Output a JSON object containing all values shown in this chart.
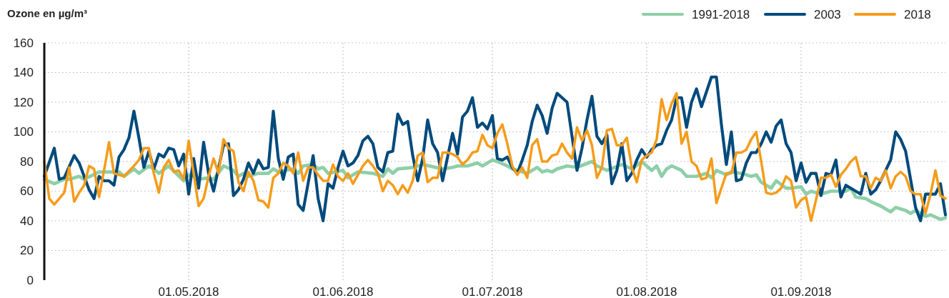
{
  "chart_data": {
    "type": "line",
    "ylabel": "Ozone en µg/m³",
    "xlim": [
      "2018-04-02",
      "2018-09-30"
    ],
    "ylim": [
      0,
      160
    ],
    "yticks": [
      0,
      20,
      40,
      60,
      80,
      100,
      120,
      140,
      160
    ],
    "xticks": [
      {
        "value": "2018-05-01",
        "label": "01.05.2018"
      },
      {
        "value": "2018-06-01",
        "label": "01.06.2018"
      },
      {
        "value": "2018-07-01",
        "label": "01.07.2018"
      },
      {
        "value": "2018-08-01",
        "label": "01.08.2018"
      },
      {
        "value": "2018-09-01",
        "label": "01.09.2018"
      }
    ],
    "grid": true,
    "legend": "top right",
    "marker": "none",
    "line_style": "solid",
    "series": [
      {
        "name": "1991-2018",
        "color": "#8ecfa8",
        "x": [
          "2018-04-02",
          "2018-04-04",
          "2018-04-06",
          "2018-04-07",
          "2018-04-09",
          "2018-04-10",
          "2018-04-13",
          "2018-04-15",
          "2018-04-17",
          "2018-04-18",
          "2018-04-20",
          "2018-04-21",
          "2018-04-23",
          "2018-04-24",
          "2018-04-25",
          "2018-04-27",
          "2018-04-30",
          "2018-05-01",
          "2018-05-02",
          "2018-05-03",
          "2018-05-05",
          "2018-05-06",
          "2018-05-08",
          "2018-05-10",
          "2018-05-11",
          "2018-05-12",
          "2018-05-13",
          "2018-05-15",
          "2018-05-17",
          "2018-05-18",
          "2018-05-19",
          "2018-05-22",
          "2018-05-23",
          "2018-05-24",
          "2018-05-26",
          "2018-05-27",
          "2018-05-28",
          "2018-05-29",
          "2018-06-01",
          "2018-06-02",
          "2018-06-04",
          "2018-06-07",
          "2018-06-09",
          "2018-06-10",
          "2018-06-11",
          "2018-06-12",
          "2018-06-15",
          "2018-06-17",
          "2018-06-21",
          "2018-06-23",
          "2018-06-24",
          "2018-06-26",
          "2018-06-28",
          "2018-06-29",
          "2018-07-01",
          "2018-07-02",
          "2018-07-04",
          "2018-07-05",
          "2018-07-08",
          "2018-07-10",
          "2018-07-11",
          "2018-07-12",
          "2018-07-13",
          "2018-07-14",
          "2018-07-16",
          "2018-07-18",
          "2018-07-21",
          "2018-07-22",
          "2018-07-24",
          "2018-07-27",
          "2018-07-29",
          "2018-07-31",
          "2018-08-01",
          "2018-08-02",
          "2018-08-03",
          "2018-08-04",
          "2018-08-05",
          "2018-08-06",
          "2018-08-08",
          "2018-08-09",
          "2018-08-11",
          "2018-08-13",
          "2018-08-14",
          "2018-08-15",
          "2018-08-17",
          "2018-08-18",
          "2018-08-20",
          "2018-08-22",
          "2018-08-23",
          "2018-08-24",
          "2018-08-26",
          "2018-08-27",
          "2018-08-29",
          "2018-08-30",
          "2018-09-01",
          "2018-09-02",
          "2018-09-03",
          "2018-09-05",
          "2018-09-07",
          "2018-09-10",
          "2018-09-11",
          "2018-09-12",
          "2018-09-14",
          "2018-09-15",
          "2018-09-17",
          "2018-09-19",
          "2018-09-20",
          "2018-09-22",
          "2018-09-23",
          "2018-09-24",
          "2018-09-26",
          "2018-09-27",
          "2018-09-29",
          "2018-09-30"
        ],
        "values": [
          68,
          65,
          68,
          68,
          70,
          68,
          73,
          73,
          73,
          70,
          75,
          72,
          77,
          75,
          72,
          77,
          67,
          71,
          70,
          68,
          69,
          68,
          77,
          74,
          70,
          72,
          70,
          72,
          72,
          75,
          73,
          75,
          72,
          77,
          78,
          75,
          76,
          72,
          74,
          69,
          73,
          72,
          70,
          75,
          72,
          75,
          76,
          78,
          75,
          76,
          77,
          77,
          79,
          77,
          81,
          80,
          77,
          75,
          72,
          76,
          73,
          74,
          73,
          75,
          77,
          76,
          80,
          77,
          74,
          78,
          75,
          80,
          77,
          74,
          77,
          70,
          75,
          77,
          74,
          70,
          70,
          72,
          69,
          74,
          71,
          73,
          72,
          70,
          71,
          66,
          62,
          67,
          62,
          62,
          63,
          58,
          60,
          58,
          60,
          60,
          62,
          56,
          55,
          53,
          50,
          46,
          49,
          47,
          45,
          47,
          43,
          44,
          41,
          42
        ]
      },
      {
        "name": "2003",
        "color": "#004a7c",
        "x": [
          "2018-04-02",
          "2018-04-04",
          "2018-04-05",
          "2018-04-06",
          "2018-04-08",
          "2018-04-09",
          "2018-04-11",
          "2018-04-12",
          "2018-04-13",
          "2018-04-14",
          "2018-04-15",
          "2018-04-16",
          "2018-04-17",
          "2018-04-18",
          "2018-04-19",
          "2018-04-20",
          "2018-04-21",
          "2018-04-22",
          "2018-04-23",
          "2018-04-24",
          "2018-04-25",
          "2018-04-26",
          "2018-04-27",
          "2018-04-28",
          "2018-04-29",
          "2018-04-30",
          "2018-05-01",
          "2018-05-02",
          "2018-05-03",
          "2018-05-04",
          "2018-05-05",
          "2018-05-06",
          "2018-05-08",
          "2018-05-09",
          "2018-05-10",
          "2018-05-11",
          "2018-05-12",
          "2018-05-13",
          "2018-05-14",
          "2018-05-15",
          "2018-05-16",
          "2018-05-17",
          "2018-05-18",
          "2018-05-19",
          "2018-05-20",
          "2018-05-21",
          "2018-05-22",
          "2018-05-23",
          "2018-05-24",
          "2018-05-26",
          "2018-05-27",
          "2018-05-28",
          "2018-05-29",
          "2018-05-30",
          "2018-05-31",
          "2018-06-01",
          "2018-06-02",
          "2018-06-03",
          "2018-06-04",
          "2018-06-05",
          "2018-06-06",
          "2018-06-07",
          "2018-06-08",
          "2018-06-09",
          "2018-06-10",
          "2018-06-11",
          "2018-06-12",
          "2018-06-13",
          "2018-06-14",
          "2018-06-15",
          "2018-06-16",
          "2018-06-17",
          "2018-06-18",
          "2018-06-19",
          "2018-06-20",
          "2018-06-21",
          "2018-06-22",
          "2018-06-23",
          "2018-06-24",
          "2018-06-25",
          "2018-06-26",
          "2018-06-27",
          "2018-06-28",
          "2018-06-29",
          "2018-06-30",
          "2018-07-01",
          "2018-07-02",
          "2018-07-03",
          "2018-07-04",
          "2018-07-05",
          "2018-07-06",
          "2018-07-07",
          "2018-07-08",
          "2018-07-09",
          "2018-07-10",
          "2018-07-11",
          "2018-07-12",
          "2018-07-13",
          "2018-07-14",
          "2018-07-15",
          "2018-07-16",
          "2018-07-17",
          "2018-07-18",
          "2018-07-19",
          "2018-07-20",
          "2018-07-21",
          "2018-07-22",
          "2018-07-23",
          "2018-07-24",
          "2018-07-25",
          "2018-07-26",
          "2018-07-27",
          "2018-07-28",
          "2018-07-29",
          "2018-07-30",
          "2018-07-31",
          "2018-08-01",
          "2018-08-02",
          "2018-08-03",
          "2018-08-04",
          "2018-08-05",
          "2018-08-06",
          "2018-08-07",
          "2018-08-08",
          "2018-08-09",
          "2018-08-10",
          "2018-08-11",
          "2018-08-12",
          "2018-08-14",
          "2018-08-15",
          "2018-08-16",
          "2018-08-17",
          "2018-08-18",
          "2018-08-19",
          "2018-08-20",
          "2018-08-21",
          "2018-08-22",
          "2018-08-23",
          "2018-08-24",
          "2018-08-25",
          "2018-08-26",
          "2018-08-27",
          "2018-08-28",
          "2018-08-29",
          "2018-08-30",
          "2018-08-31",
          "2018-09-01",
          "2018-09-02",
          "2018-09-03",
          "2018-09-04",
          "2018-09-05",
          "2018-09-06",
          "2018-09-07",
          "2018-09-08",
          "2018-09-09",
          "2018-09-10",
          "2018-09-13",
          "2018-09-14",
          "2018-09-15",
          "2018-09-16",
          "2018-09-17",
          "2018-09-19",
          "2018-09-20",
          "2018-09-21",
          "2018-09-22",
          "2018-09-24",
          "2018-09-25",
          "2018-09-26",
          "2018-09-28",
          "2018-09-29",
          "2018-09-30"
        ],
        "values": [
          70,
          89,
          68,
          69,
          84,
          79,
          61,
          55,
          70,
          67,
          67,
          64,
          83,
          88,
          96,
          114,
          96,
          76,
          87,
          75,
          85,
          83,
          89,
          88,
          77,
          85,
          58,
          82,
          62,
          93,
          72,
          60,
          91,
          92,
          57,
          61,
          68,
          79,
          72,
          81,
          75,
          76,
          114,
          82,
          68,
          83,
          85,
          51,
          47,
          84,
          55,
          40,
          65,
          62,
          76,
          87,
          77,
          79,
          84,
          94,
          97,
          92,
          76,
          73,
          86,
          87,
          112,
          105,
          107,
          84,
          67,
          82,
          108,
          92,
          86,
          67,
          83,
          99,
          85,
          110,
          114,
          123,
          103,
          106,
          102,
          111,
          82,
          81,
          83,
          76,
          72,
          81,
          91,
          107,
          118,
          111,
          99,
          116,
          126,
          123,
          120,
          97,
          74,
          89,
          108,
          124,
          97,
          92,
          98,
          65,
          74,
          92,
          67,
          72,
          81,
          88,
          83,
          88,
          91,
          92,
          101,
          108,
          123,
          123,
          103,
          120,
          129,
          117,
          137,
          137,
          105,
          78,
          100,
          67,
          68,
          79,
          86,
          86,
          92,
          100,
          93,
          104,
          108,
          92,
          86,
          67,
          79,
          66,
          72,
          72,
          57,
          72,
          71,
          81,
          56,
          64,
          58,
          72,
          58,
          61,
          67,
          81,
          100,
          95,
          87,
          49,
          40,
          58,
          58,
          65,
          44
        ]
      },
      {
        "name": "2018",
        "color": "#f59c1a",
        "x": [
          "2018-04-02",
          "2018-04-03",
          "2018-04-04",
          "2018-04-06",
          "2018-04-07",
          "2018-04-08",
          "2018-04-09",
          "2018-04-10",
          "2018-04-11",
          "2018-04-12",
          "2018-04-13",
          "2018-04-14",
          "2018-04-15",
          "2018-04-16",
          "2018-04-18",
          "2018-04-20",
          "2018-04-21",
          "2018-04-22",
          "2018-04-23",
          "2018-04-24",
          "2018-04-25",
          "2018-04-26",
          "2018-04-27",
          "2018-04-28",
          "2018-04-29",
          "2018-04-30",
          "2018-05-01",
          "2018-05-02",
          "2018-05-03",
          "2018-05-04",
          "2018-05-05",
          "2018-05-06",
          "2018-05-07",
          "2018-05-08",
          "2018-05-09",
          "2018-05-10",
          "2018-05-11",
          "2018-05-12",
          "2018-05-13",
          "2018-05-14",
          "2018-05-15",
          "2018-05-16",
          "2018-05-17",
          "2018-05-18",
          "2018-05-19",
          "2018-05-20",
          "2018-05-21",
          "2018-05-22",
          "2018-05-23",
          "2018-05-24",
          "2018-05-25",
          "2018-05-26",
          "2018-05-27",
          "2018-05-28",
          "2018-05-29",
          "2018-05-30",
          "2018-05-31",
          "2018-06-01",
          "2018-06-02",
          "2018-06-03",
          "2018-06-04",
          "2018-06-05",
          "2018-06-06",
          "2018-06-07",
          "2018-06-08",
          "2018-06-09",
          "2018-06-10",
          "2018-06-11",
          "2018-06-12",
          "2018-06-13",
          "2018-06-14",
          "2018-06-15",
          "2018-06-16",
          "2018-06-17",
          "2018-06-18",
          "2018-06-19",
          "2018-06-20",
          "2018-06-21",
          "2018-06-22",
          "2018-06-23",
          "2018-06-24",
          "2018-06-25",
          "2018-06-26",
          "2018-06-27",
          "2018-06-28",
          "2018-06-29",
          "2018-06-30",
          "2018-07-01",
          "2018-07-02",
          "2018-07-03",
          "2018-07-04",
          "2018-07-05",
          "2018-07-06",
          "2018-07-07",
          "2018-07-08",
          "2018-07-09",
          "2018-07-10",
          "2018-07-11",
          "2018-07-12",
          "2018-07-13",
          "2018-07-14",
          "2018-07-15",
          "2018-07-16",
          "2018-07-17",
          "2018-07-18",
          "2018-07-19",
          "2018-07-20",
          "2018-07-21",
          "2018-07-22",
          "2018-07-23",
          "2018-07-24",
          "2018-07-25",
          "2018-07-26",
          "2018-07-27",
          "2018-07-28",
          "2018-07-29",
          "2018-07-30",
          "2018-07-31",
          "2018-08-01",
          "2018-08-02",
          "2018-08-03",
          "2018-08-04",
          "2018-08-05",
          "2018-08-06",
          "2018-08-07",
          "2018-08-08",
          "2018-08-09",
          "2018-08-10",
          "2018-08-11",
          "2018-08-12",
          "2018-08-13",
          "2018-08-14",
          "2018-08-15",
          "2018-08-16",
          "2018-08-17",
          "2018-08-18",
          "2018-08-19",
          "2018-08-20",
          "2018-08-21",
          "2018-08-22",
          "2018-08-23",
          "2018-08-24",
          "2018-08-25",
          "2018-08-26",
          "2018-08-27",
          "2018-08-28",
          "2018-08-29",
          "2018-08-30",
          "2018-08-31",
          "2018-09-01",
          "2018-09-02",
          "2018-09-03",
          "2018-09-04",
          "2018-09-05",
          "2018-09-06",
          "2018-09-07",
          "2018-09-08",
          "2018-09-09",
          "2018-09-10",
          "2018-09-11",
          "2018-09-12",
          "2018-09-13",
          "2018-09-14",
          "2018-09-15",
          "2018-09-16",
          "2018-09-17",
          "2018-09-18",
          "2018-09-19",
          "2018-09-20",
          "2018-09-21",
          "2018-09-22",
          "2018-09-23",
          "2018-09-24",
          "2018-09-25",
          "2018-09-26",
          "2018-09-27",
          "2018-09-28",
          "2018-09-29",
          "2018-09-30"
        ],
        "values": [
          80,
          55,
          51,
          59,
          76,
          53,
          59,
          64,
          77,
          75,
          56,
          74,
          93,
          72,
          70,
          77,
          81,
          89,
          89,
          72,
          59,
          76,
          81,
          73,
          74,
          68,
          94,
          72,
          50,
          55,
          70,
          82,
          72,
          95,
          89,
          87,
          66,
          60,
          73,
          67,
          54,
          53,
          49,
          69,
          72,
          79,
          77,
          72,
          86,
          67,
          76,
          76,
          71,
          67,
          67,
          78,
          70,
          67,
          72,
          65,
          71,
          77,
          81,
          77,
          72,
          60,
          67,
          64,
          58,
          64,
          59,
          67,
          84,
          86,
          66,
          69,
          69,
          86,
          86,
          85,
          83,
          78,
          81,
          86,
          87,
          98,
          91,
          89,
          99,
          105,
          92,
          77,
          71,
          76,
          69,
          91,
          95,
          80,
          80,
          84,
          85,
          92,
          86,
          82,
          103,
          94,
          101,
          91,
          69,
          76,
          101,
          102,
          91,
          91,
          96,
          76,
          66,
          81,
          84,
          86,
          95,
          122,
          108,
          119,
          126,
          92,
          100,
          80,
          77,
          68,
          69,
          82,
          52,
          62,
          72,
          72,
          86,
          86,
          88,
          95,
          100,
          80,
          59,
          58,
          59,
          62,
          70,
          67,
          49,
          54,
          56,
          40,
          54,
          69,
          69,
          71,
          63,
          71,
          75,
          80,
          83,
          70,
          70,
          62,
          69,
          67,
          74,
          62,
          70,
          73,
          70,
          60,
          58,
          58,
          45,
          58,
          74,
          57,
          55
        ]
      }
    ]
  }
}
